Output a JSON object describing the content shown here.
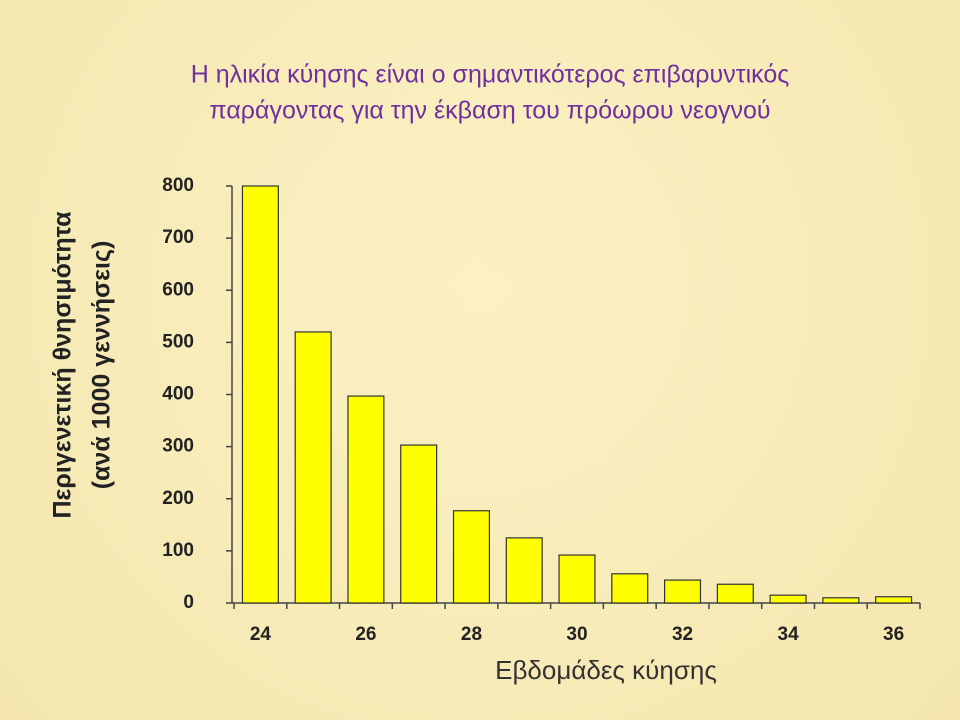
{
  "chart_data": {
    "type": "bar",
    "title": [
      "Η ηλικία κύησης είναι ο σημαντικότερος επιβαρυντικός",
      "παράγοντας για την έκβαση του πρόωρου νεογνού"
    ],
    "ylabel": [
      "Περιγενετική θνησιμότητα",
      "(ανά 1000 γεννήσεις)"
    ],
    "xlabel": "Εβδομάδες κύησης",
    "categories": [
      "24",
      null,
      "26",
      null,
      "28",
      null,
      "30",
      null,
      "32",
      null,
      "34",
      null,
      "36"
    ],
    "values": [
      800,
      520,
      397,
      303,
      177,
      125,
      92,
      56,
      44,
      36,
      15,
      10,
      12
    ],
    "color": "#ffff00",
    "ylim": [
      0,
      800
    ],
    "yticks": [
      0,
      100,
      200,
      300,
      400,
      500,
      600,
      700,
      800
    ],
    "grid": false
  }
}
